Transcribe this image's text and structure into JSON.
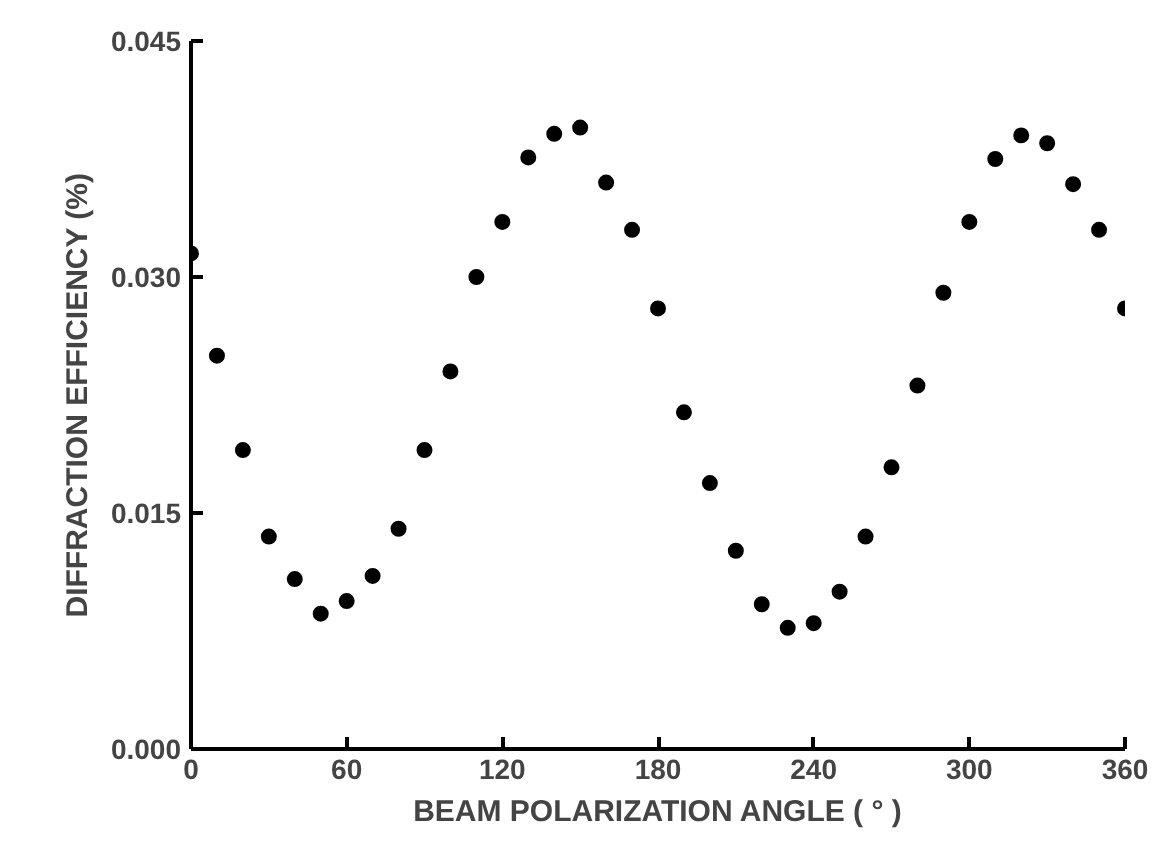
{
  "chart_data": {
    "type": "scatter",
    "xlabel": "BEAM POLARIZATION ANGLE ( ° )",
    "ylabel": "DIFFRACTION EFFICIENCY (%)",
    "x": [
      0,
      10,
      20,
      30,
      40,
      50,
      60,
      70,
      80,
      90,
      100,
      110,
      120,
      130,
      140,
      150,
      160,
      170,
      180,
      190,
      200,
      210,
      220,
      230,
      240,
      250,
      260,
      270,
      280,
      290,
      300,
      310,
      320,
      330,
      340,
      350,
      360
    ],
    "series": [
      {
        "color": "#000000",
        "values": [
          0.0315,
          0.025,
          0.019,
          0.0135,
          0.0108,
          0.0086,
          0.0094,
          0.011,
          0.014,
          0.019,
          0.024,
          0.03,
          0.0335,
          0.0376,
          0.0391,
          0.0395,
          0.036,
          0.033,
          0.028,
          0.0214,
          0.0169,
          0.0126,
          0.0092,
          0.0077,
          0.008,
          0.01,
          0.0135,
          0.0179,
          0.0231,
          0.029,
          0.0335,
          0.0375,
          0.039,
          0.0385,
          0.0359,
          0.033,
          0.028
        ]
      }
    ],
    "xlim": [
      0,
      360
    ],
    "ylim": [
      0,
      0.045
    ],
    "xticks": [
      0,
      60,
      120,
      180,
      240,
      300,
      360
    ],
    "yticks": [
      {
        "value": 0,
        "label": "0.000"
      },
      {
        "value": 0.015,
        "label": "0.015"
      },
      {
        "value": 0.03,
        "label": "0.030"
      },
      {
        "value": 0.045,
        "label": "0.045"
      }
    ],
    "marker": "circle",
    "grid": false
  }
}
